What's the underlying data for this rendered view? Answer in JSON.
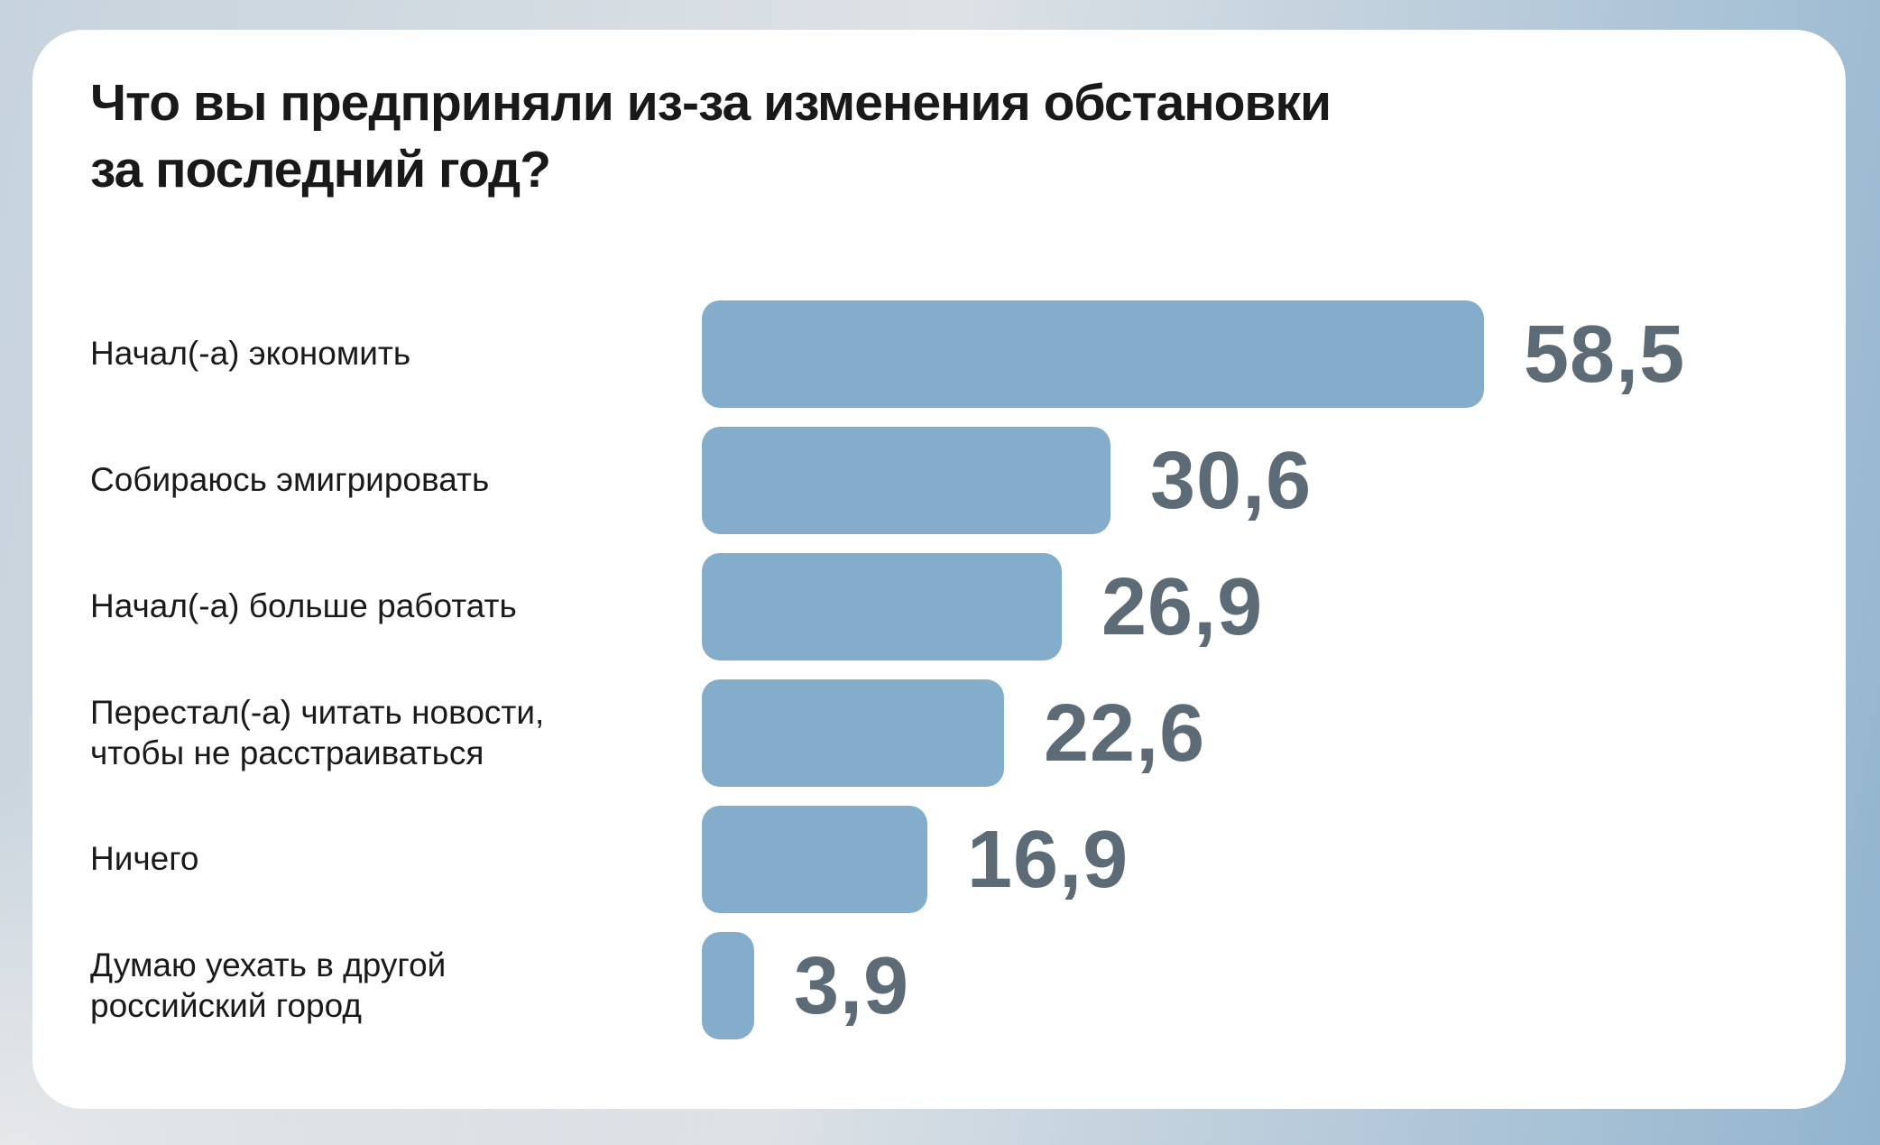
{
  "header": {
    "title_line1": "Что вы предприняли из-за изменения обстановки",
    "title_line2": "за последний год?"
  },
  "chart_data": {
    "type": "bar",
    "orientation": "horizontal",
    "title": "Что вы предприняли из-за изменения обстановки за последний год?",
    "categories": [
      "Начал(-а) экономить",
      "Собираюсь эмигрировать",
      "Начал(-а) больше работать",
      "Перестал(-а) читать новости,\nчтобы не расстраиваться",
      "Ничего",
      "Думаю уехать в другой\nроссийский город"
    ],
    "values": [
      58.5,
      30.6,
      26.9,
      22.6,
      16.9,
      3.9
    ],
    "value_labels": [
      "58,5",
      "30,6",
      "26,9",
      "22,6",
      "16,9",
      "3,9"
    ],
    "xlim": [
      0,
      60
    ],
    "grid": false,
    "legend": false,
    "bar_color": "#84adcb",
    "value_color": "#5c6b75",
    "label_color": "#1a1a1a",
    "title_color": "#191919",
    "card_color": "#ffffff"
  }
}
